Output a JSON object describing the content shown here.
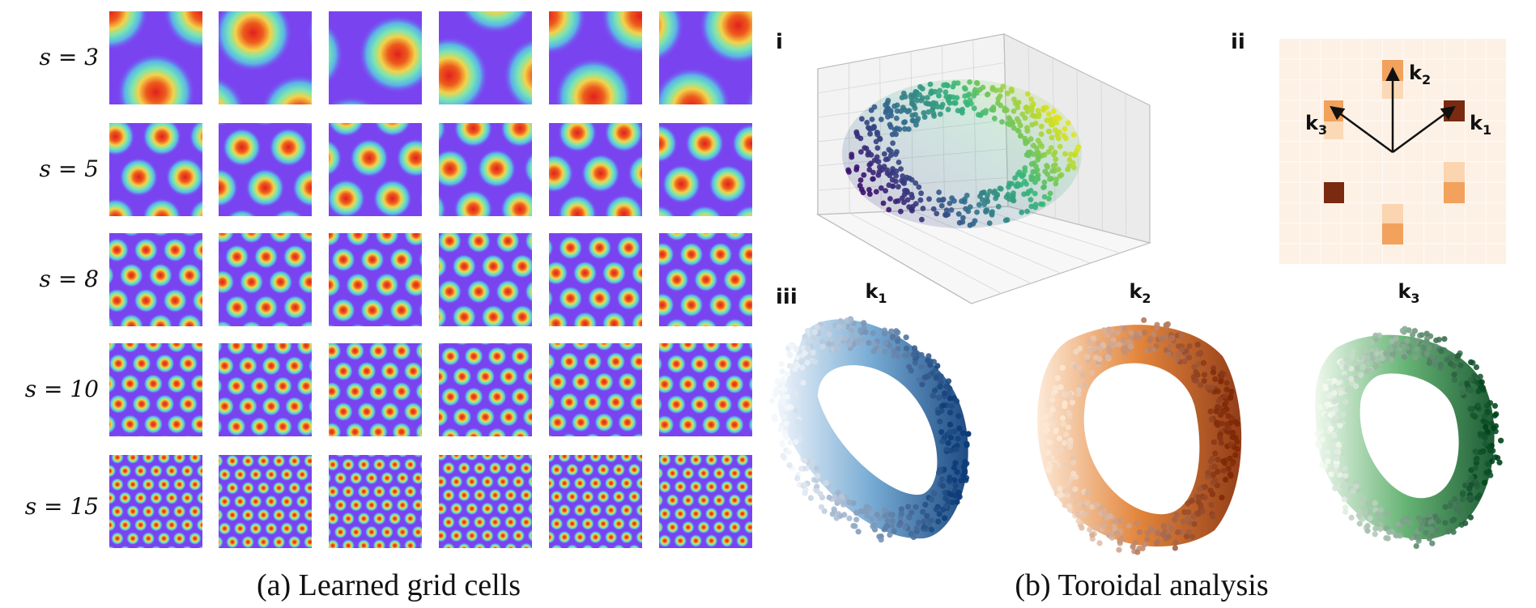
{
  "panel_a": {
    "row_labels": [
      "s = 3",
      "s = 5",
      "s = 8",
      "s = 10",
      "s = 15"
    ],
    "caption": "(a) Learned grid cells"
  },
  "panel_b": {
    "tags": {
      "i": "i",
      "ii": "ii",
      "iii": "iii"
    },
    "vector_labels": {
      "k1": "k",
      "k1_sub": "1",
      "k2": "k",
      "k2_sub": "2",
      "k3": "k",
      "k3_sub": "3"
    },
    "torus_labels": [
      {
        "main": "k",
        "sub": "1"
      },
      {
        "main": "k",
        "sub": "2"
      },
      {
        "main": "k",
        "sub": "3"
      }
    ],
    "caption": "(b) Toroidal analysis"
  },
  "colors": {
    "grid_background": "#7a43f0",
    "blue": "#08306b",
    "orange": "#7f2704",
    "green": "#00441b"
  }
}
